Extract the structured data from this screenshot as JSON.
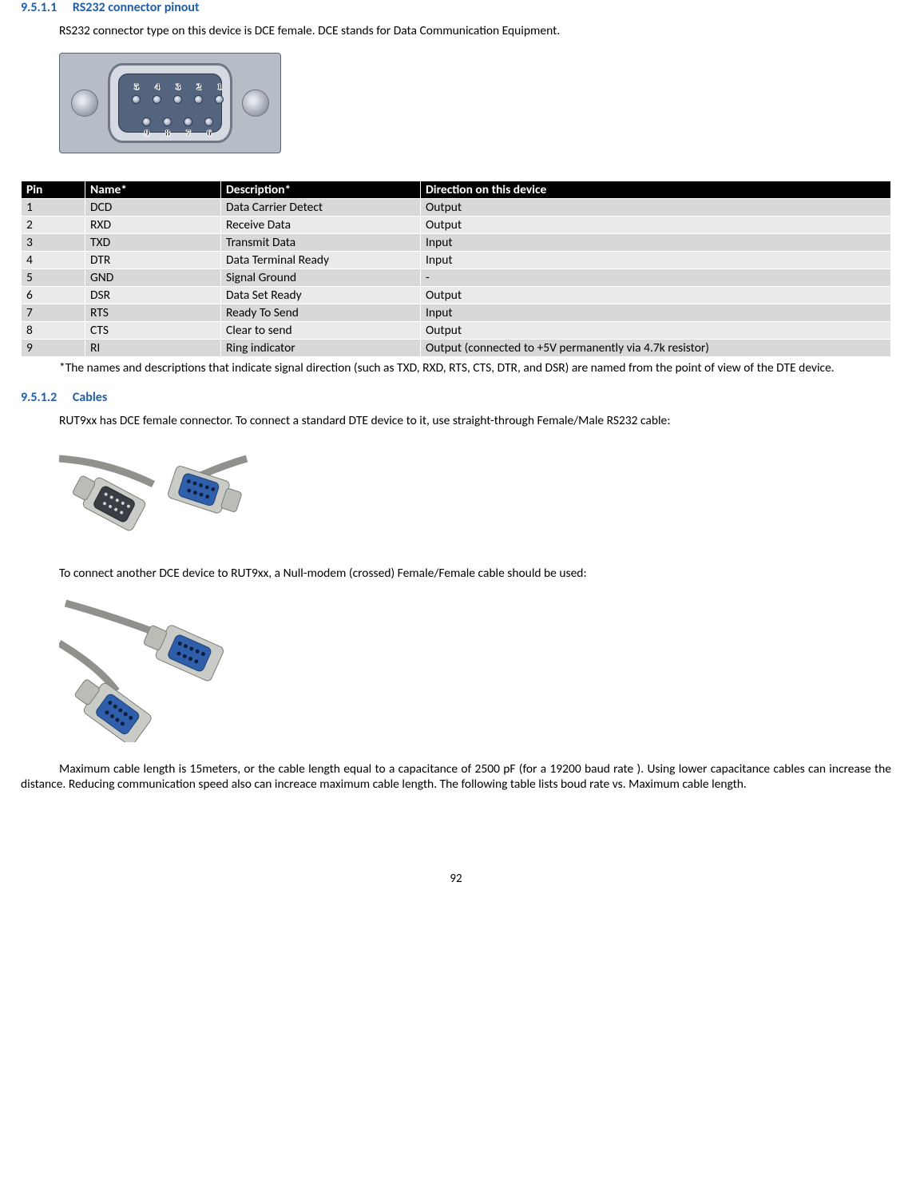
{
  "headings": {
    "h1": {
      "num": "9.5.1.1",
      "title": "RS232 connector pinout"
    },
    "h2": {
      "num": "9.5.1.2",
      "title": "Cables"
    }
  },
  "paragraphs": {
    "intro": "RS232 connector type on this device is DCE female. DCE stands for Data Communication Equipment.",
    "footnote": "*The names and descriptions that indicate signal direction (such as TXD, RXD, RTS, CTS, DTR, and DSR) are named from the point of view of the DTE device.",
    "cables_intro": "RUT9xx has DCE female connector. To connect a standard DTE device to it, use straight-through Female/Male RS232 cable:",
    "null_modem": "To connect another DCE device to RUT9xx, a Null-modem (crossed) Female/Female cable should be used:",
    "max_len": "Maximum cable length is 15meters, or the cable length equal to a capacitance of 2500 pF (for a 19200 baud rate ). Using lower capacitance cables can increase the distance. Reducing communication speed also can increace maximum cable length. The following table lists boud rate vs. Maximum cable length."
  },
  "table": {
    "headers": {
      "pin": "Pin",
      "name": "Name*",
      "desc": "Description*",
      "dir": "Direction on this device"
    },
    "rows": [
      {
        "pin": "1",
        "name": "DCD",
        "desc": "Data Carrier Detect",
        "dir": "Output"
      },
      {
        "pin": "2",
        "name": "RXD",
        "desc": "Receive Data",
        "dir": "Output"
      },
      {
        "pin": "3",
        "name": "TXD",
        "desc": "Transmit Data",
        "dir": "Input"
      },
      {
        "pin": "4",
        "name": "DTR",
        "desc": "Data Terminal Ready",
        "dir": "Input"
      },
      {
        "pin": "5",
        "name": "GND",
        "desc": "Signal Ground",
        "dir": "-"
      },
      {
        "pin": "6",
        "name": "DSR",
        "desc": "Data Set Ready",
        "dir": "Output"
      },
      {
        "pin": "7",
        "name": "RTS",
        "desc": "Ready To Send",
        "dir": "Input"
      },
      {
        "pin": "8",
        "name": "CTS",
        "desc": "Clear to send",
        "dir": "Output"
      },
      {
        "pin": "9",
        "name": "RI",
        "desc": "Ring indicator",
        "dir": "Output (connected to +5V permanently via 4.7k resistor)"
      }
    ]
  },
  "connector": {
    "top_labels": [
      "5",
      "4",
      "3",
      "2",
      "1"
    ],
    "bottom_labels": [
      "9",
      "8",
      "7",
      "6"
    ]
  },
  "colors": {
    "heading": "#1f5faa",
    "table_header_bg": "#000000",
    "table_header_fg": "#ffffff",
    "row_a": "#d8d8d8",
    "row_b": "#eaeaea",
    "connector_body": "#b7bdc7",
    "connector_face": "#55647e",
    "cable_body": "#c5c7c4",
    "cable_blue": "#2f5fab"
  },
  "page_number": "92"
}
